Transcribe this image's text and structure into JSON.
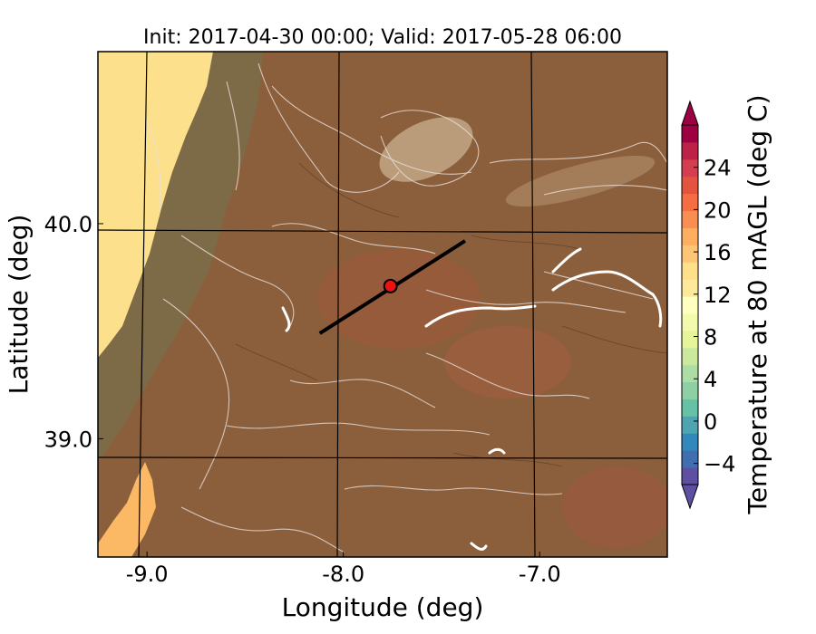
{
  "chart_data": {
    "type": "heatmap",
    "title": "Init: 2017-04-30 00:00; Valid: 2017-05-28 06:00",
    "xlabel": "Longitude (deg)",
    "ylabel": "Latitude (deg)",
    "xlim": [
      -9.25,
      -6.35
    ],
    "ylim": [
      38.45,
      40.8
    ],
    "x_ticks": [
      {
        "value": -9.0,
        "label": "-9.0"
      },
      {
        "value": -8.0,
        "label": "-8.0"
      },
      {
        "value": -7.0,
        "label": "-7.0"
      }
    ],
    "y_ticks": [
      {
        "value": 40.0,
        "label": "40.0"
      },
      {
        "value": 39.0,
        "label": "39.0"
      }
    ],
    "grid": true,
    "transect": {
      "start": [
        -8.12,
        39.49
      ],
      "end": [
        -7.38,
        39.92
      ]
    },
    "marker_point": [
      -7.76,
      39.71
    ],
    "colorbar": {
      "label": "Temperature at 80 mAGL (deg C)",
      "vmin": -6,
      "vmax": 28,
      "ticks": [
        {
          "value": -4,
          "label": "−4"
        },
        {
          "value": 0,
          "label": "0"
        },
        {
          "value": 4,
          "label": "4"
        },
        {
          "value": 8,
          "label": "8"
        },
        {
          "value": 12,
          "label": "12"
        },
        {
          "value": 16,
          "label": "16"
        },
        {
          "value": 20,
          "label": "20"
        },
        {
          "value": 24,
          "label": "24"
        }
      ],
      "colors": [
        "#5e4fa2",
        "#3f6fb0",
        "#3288bd",
        "#4ea4b0",
        "#66c2a5",
        "#8ed0a4",
        "#abdda4",
        "#cbe99d",
        "#e6f598",
        "#f4faad",
        "#ffffbf",
        "#fee89a",
        "#fee08b",
        "#fdc574",
        "#fdae61",
        "#f98e52",
        "#f46d43",
        "#e4533f",
        "#d53e4f",
        "#be2148",
        "#9e0142"
      ]
    }
  }
}
